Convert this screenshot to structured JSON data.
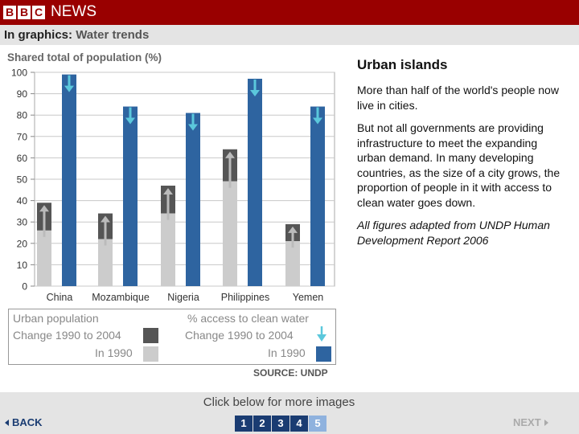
{
  "header": {
    "logo_letters": [
      "B",
      "B",
      "C"
    ],
    "logo_word": "NEWS",
    "brand_color": "#990000"
  },
  "subheader": {
    "prefix": "In graphics:",
    "title": "Water trends"
  },
  "chart_data": {
    "type": "bar",
    "ylabel": "Shared total of population (%)",
    "ylim": [
      0,
      100
    ],
    "yticks": [
      0,
      10,
      20,
      30,
      40,
      50,
      60,
      70,
      80,
      90,
      100
    ],
    "grid": true,
    "categories": [
      "China",
      "Mozambique",
      "Nigeria",
      "Philippines",
      "Yemen"
    ],
    "series": [
      {
        "name": "Urban population In 1990",
        "values": [
          26,
          22,
          34,
          49,
          21
        ],
        "color": "#cccccc"
      },
      {
        "name": "Urban population Change 1990 to 2004",
        "values": [
          39,
          34,
          47,
          64,
          29
        ],
        "color": "#555555"
      },
      {
        "name": "% access to clean water In 1990",
        "values": [
          99,
          84,
          81,
          97,
          84
        ],
        "color": "#2e64a0"
      }
    ],
    "change_arrow_color": "#5bc8dc"
  },
  "legend": {
    "urban_heading": "Urban population",
    "urban_change": "Change 1990 to 2004",
    "urban_1990": "In 1990",
    "water_heading": "% access to clean water",
    "water_change": "Change 1990 to 2004",
    "water_1990": "In 1990"
  },
  "source": "SOURCE: UNDP",
  "panel": {
    "title": "Urban islands",
    "para1": "More than half of the world's people now live in cities.",
    "para2": "But not all governments are providing infrastructure to meet the expanding urban demand. In many developing countries, as the size of a city grows, the proportion of people in it with access to clean water goes down.",
    "note": "All figures adapted from UNDP Human Development Report 2006"
  },
  "footer": {
    "caption": "Click below for more images",
    "back_label": "BACK",
    "next_label": "NEXT",
    "pages": [
      "1",
      "2",
      "3",
      "4",
      "5"
    ],
    "current_page": "5"
  }
}
